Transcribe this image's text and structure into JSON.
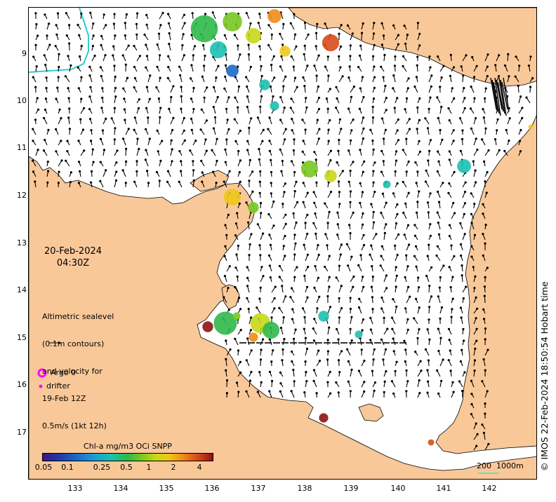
{
  "title_block": {
    "date": "20-Feb-2024",
    "time": "04:30Z"
  },
  "description": {
    "line1": "Altimetric sealevel",
    "line2": "(0.1m contours)",
    "line3": "and velocity for",
    "line4": "19-Feb 12Z",
    "line5": "0.5m/s (1kt 12h)"
  },
  "legend": {
    "argo_label": "Argo 0",
    "drifter_label": "drifter",
    "argo_color": "#ff00ff",
    "drifter_color": "#ff00ff"
  },
  "colorbar": {
    "title": "Chl-a mg/m3 OCi SNPP",
    "ticks": [
      "0.05",
      "0.1",
      "0.25",
      "0.5",
      "1",
      "2",
      "4"
    ]
  },
  "scale_bar": {
    "label": "200  1000m",
    "color": "#40e0d0"
  },
  "copyright": "© IMOS 22-Feb-2024 18:50:54 Hobart time",
  "axes": {
    "x_ticks": [
      "133",
      "134",
      "135",
      "136",
      "137",
      "138",
      "139",
      "140",
      "141",
      "142"
    ],
    "y_ticks": [
      "9",
      "10",
      "11",
      "12",
      "13",
      "14",
      "15",
      "16",
      "17"
    ]
  },
  "colors": {
    "land": "#f9c899",
    "ocean": "#ffffff",
    "arrow": "#000000",
    "contour_line": "#2ad0d0"
  }
}
